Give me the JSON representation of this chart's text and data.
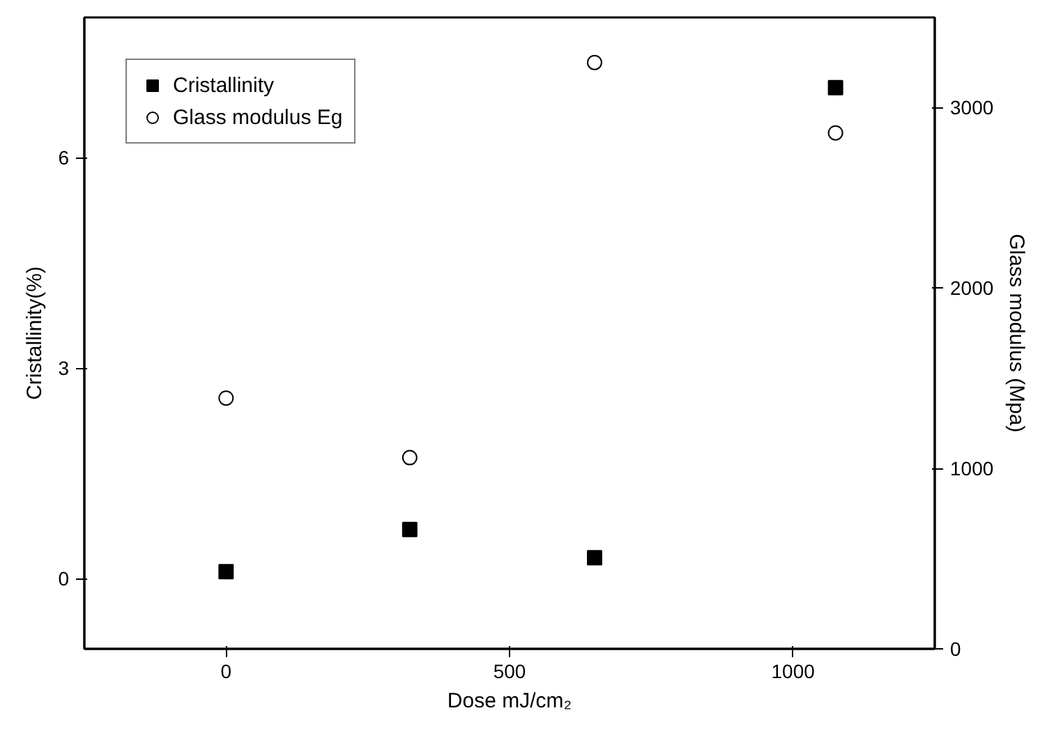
{
  "chart_data": {
    "type": "scatter",
    "xlabel": "Dose mJ/cm₂",
    "ylabel": "Cristallinity(%)",
    "y2label": "Glass modulus (Mpa)",
    "x": [
      0,
      324,
      650,
      1075
    ],
    "series": [
      {
        "name": "Cristallinity",
        "color": "#000000",
        "marker": "square",
        "values": [
          0.1,
          0.7,
          0.3,
          7.0
        ]
      },
      {
        "name": "Glass modulus Eg",
        "color": "#000000",
        "marker": "circle",
        "axis": "y2",
        "values": [
          1390,
          1060,
          3250,
          2860
        ]
      }
    ],
    "xlim": [
      -250,
      1250
    ],
    "xticks": [
      0,
      500,
      1000
    ],
    "ylim": [
      -1,
      8
    ],
    "yticks": [
      0,
      3,
      6
    ],
    "y2lim": [
      0,
      3500
    ],
    "y2ticks": [
      0,
      1000,
      2000,
      3000
    ],
    "grid": false,
    "legend": "top left"
  }
}
